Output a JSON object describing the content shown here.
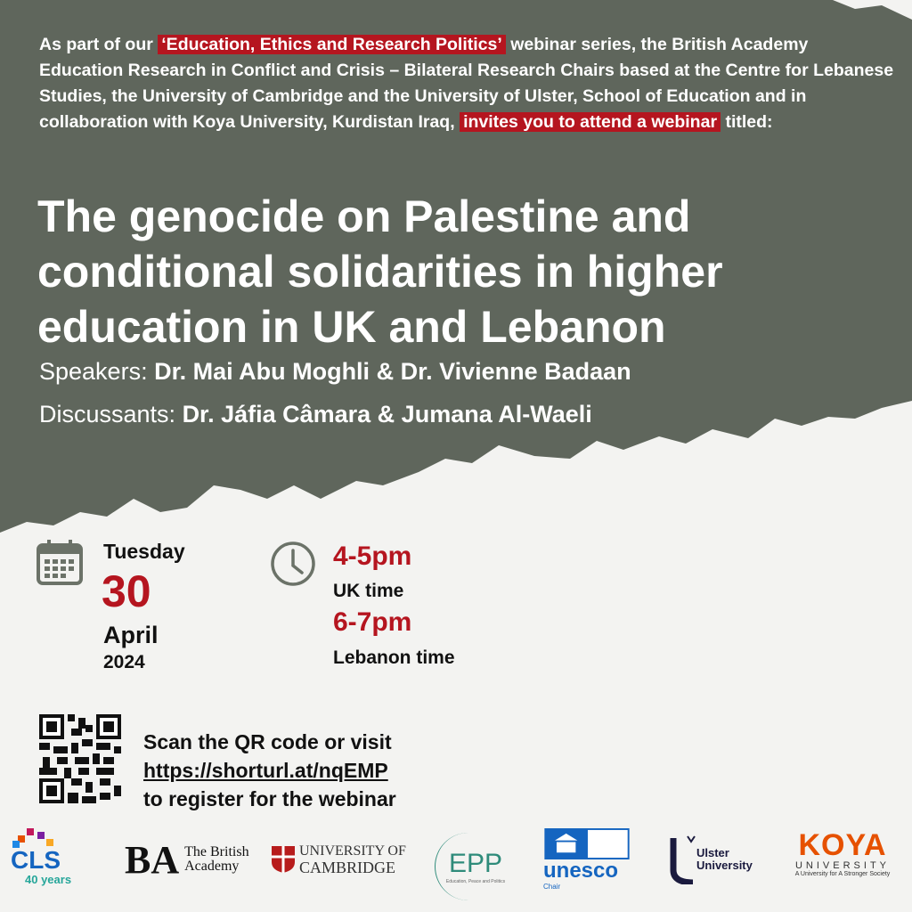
{
  "intro": {
    "part1": "As part of our ",
    "series": "‘Education, Ethics and Research Politics’",
    "part2": " webinar series, the British Academy Education Research in Conflict and Crisis – Bilateral Research Chairs based at the Centre for Lebanese Studies, the University of Cambridge and the University of Ulster, School of Education and in collaboration with Koya University, Kurdistan Iraq, ",
    "invite": "invites you to attend a webinar",
    "part3": " titled:"
  },
  "title": "The genocide on Palestine and conditional solidarities in higher education in UK and Lebanon",
  "speakers": {
    "label": "Speakers: ",
    "names": "Dr. Mai Abu Moghli & Dr. Vivienne Badaan"
  },
  "discussants": {
    "label": "Discussants: ",
    "names": "Dr. Jáfia Câmara & Jumana Al-Waeli"
  },
  "date": {
    "weekday": "Tuesday",
    "day": "30",
    "month": "April",
    "year": "2024",
    "icon": "calendar-icon"
  },
  "time": {
    "icon": "clock-icon",
    "uk": "4-5pm",
    "uk_label": "UK time",
    "lebanon": "6-7pm",
    "lebanon_label": "Lebanon time"
  },
  "register": {
    "line1": "Scan the QR code or visit",
    "url": "https://shorturl.at/nqEMP",
    "line3": "to register for the webinar"
  },
  "logos": {
    "cls": {
      "name": "CLS",
      "sub": "40 years"
    },
    "british_academy": {
      "mark": "BA",
      "name": "The British Academy"
    },
    "cambridge": {
      "line1": "UNIVERSITY OF",
      "line2": "CAMBRIDGE"
    },
    "epp": {
      "name": "EPP",
      "sub": "Education, Peace and Politics"
    },
    "unesco": {
      "name": "unesco",
      "sub": "Chair"
    },
    "ulster": {
      "name": "Ulster University"
    },
    "koya": {
      "name": "KOYA",
      "line2": "UNIVERSITY",
      "tagline": "A University for A Stronger Society"
    }
  },
  "colors": {
    "accent_red": "#b5151f",
    "background_dark": "#5f665c",
    "paper": "#f3f3f1"
  }
}
